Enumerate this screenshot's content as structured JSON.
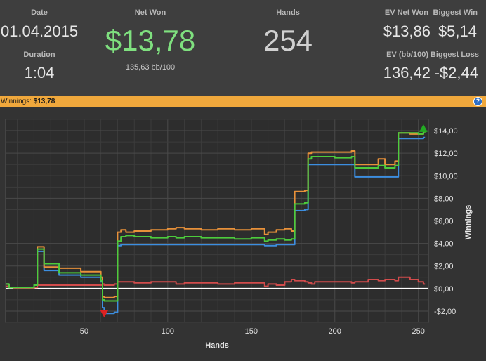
{
  "stats": {
    "date": {
      "label": "Date",
      "value": "01.04.2015"
    },
    "duration": {
      "label": "Duration",
      "value": "1:04"
    },
    "net_won": {
      "label": "Net Won",
      "value": "$13,78",
      "sub": "135,63 bb/100"
    },
    "hands": {
      "label": "Hands",
      "value": "254"
    },
    "ev_net_won": {
      "label": "EV Net Won",
      "value": "$13,86"
    },
    "biggest_win": {
      "label": "Biggest Win",
      "value": "$5,14"
    },
    "ev_bb100": {
      "label": "EV (bb/100)",
      "value": "136,42"
    },
    "biggest_loss": {
      "label": "Biggest Loss",
      "value": "-$2,44"
    }
  },
  "winbar": {
    "label": "Winnings:",
    "value": "$13,78",
    "help_label": "?"
  },
  "colors": {
    "net_won_green": "#7fe07f",
    "bar_orange": "#f0a83c",
    "line_orange": "#e8913a",
    "line_green": "#4ccc3c",
    "line_blue": "#3c8ee0",
    "line_red": "#d24c4c",
    "zero_line": "#ffffff"
  },
  "chart_data": {
    "type": "line",
    "xlabel": "Hands",
    "ylabel": "Winnings",
    "xlim": [
      3,
      256
    ],
    "ylim": [
      -3,
      15
    ],
    "x_ticks": [
      50,
      100,
      150,
      200,
      250
    ],
    "y_ticks": [
      -2,
      0,
      2,
      4,
      6,
      8,
      10,
      12,
      14
    ],
    "y_tick_labels": [
      "-$2,00",
      "$0,00",
      "$2,00",
      "$4,00",
      "$6,00",
      "$8,00",
      "$10,00",
      "$12,00",
      "$14,00"
    ],
    "grid": true,
    "x": [
      3,
      5,
      8,
      20,
      22,
      26,
      35,
      48,
      50,
      60,
      61,
      62,
      68,
      70,
      72,
      75,
      80,
      90,
      100,
      105,
      110,
      120,
      130,
      140,
      150,
      158,
      160,
      165,
      170,
      174,
      176,
      182,
      184,
      186,
      188,
      200,
      210,
      212,
      220,
      226,
      230,
      236,
      238,
      245,
      250,
      253,
      254
    ],
    "series": [
      {
        "color": "orange",
        "values": [
          0.4,
          0.1,
          0.1,
          0.3,
          3.7,
          1.9,
          1.8,
          1.5,
          1.5,
          1.0,
          -0.7,
          -0.8,
          -0.7,
          5.0,
          5.2,
          5.0,
          5.1,
          5.2,
          5.3,
          5.4,
          5.3,
          5.2,
          5.3,
          5.2,
          5.3,
          4.8,
          5.0,
          5.2,
          5.3,
          5.1,
          8.6,
          8.7,
          12.0,
          12.1,
          12.1,
          12.1,
          12.2,
          11.0,
          11.0,
          11.5,
          11.0,
          11.3,
          13.8,
          13.7,
          13.7,
          14.0,
          14.1
        ]
      },
      {
        "color": "green",
        "values": [
          0.4,
          0.1,
          0.1,
          0.3,
          3.5,
          2.2,
          1.4,
          1.2,
          1.2,
          0.7,
          -1.0,
          -1.1,
          -1.1,
          4.2,
          4.6,
          4.7,
          4.6,
          4.5,
          4.6,
          4.5,
          4.6,
          4.5,
          4.5,
          4.4,
          4.5,
          4.2,
          4.3,
          4.4,
          4.3,
          4.4,
          7.5,
          7.6,
          11.5,
          11.7,
          11.7,
          11.6,
          11.7,
          10.7,
          10.7,
          10.9,
          10.7,
          10.9,
          13.8,
          13.8,
          13.7,
          13.9,
          14.1
        ]
      },
      {
        "color": "blue",
        "values": [
          0.4,
          0.1,
          0.1,
          0.3,
          3.3,
          1.6,
          1.2,
          1.0,
          1.0,
          0.6,
          -1.7,
          -2.2,
          -2.1,
          3.8,
          3.9,
          3.9,
          3.9,
          3.9,
          3.9,
          3.9,
          3.9,
          3.9,
          3.9,
          3.9,
          3.9,
          3.8,
          3.8,
          3.9,
          3.9,
          3.9,
          6.9,
          7.0,
          11.0,
          11.0,
          11.0,
          11.0,
          11.0,
          9.9,
          9.9,
          9.9,
          9.9,
          9.9,
          13.3,
          13.3,
          13.3,
          13.4,
          13.4
        ]
      },
      {
        "color": "red",
        "values": [
          0.2,
          0.1,
          0.0,
          0.1,
          0.3,
          0.3,
          0.3,
          0.3,
          0.3,
          0.3,
          0.4,
          0.3,
          0.4,
          0.6,
          0.6,
          0.6,
          0.5,
          0.6,
          0.6,
          0.4,
          0.5,
          0.5,
          0.4,
          0.5,
          0.5,
          0.2,
          0.4,
          0.3,
          0.6,
          0.8,
          0.7,
          0.6,
          0.5,
          0.4,
          0.6,
          0.6,
          0.5,
          0.6,
          0.8,
          0.7,
          0.8,
          0.7,
          1.0,
          0.8,
          0.6,
          0.4,
          0.4
        ]
      }
    ],
    "markers": [
      {
        "kind": "max",
        "x": 253,
        "y": 14.2,
        "color": "#22aa22"
      },
      {
        "kind": "min",
        "x": 62,
        "y": -2.2,
        "color": "#dd2222"
      }
    ]
  }
}
